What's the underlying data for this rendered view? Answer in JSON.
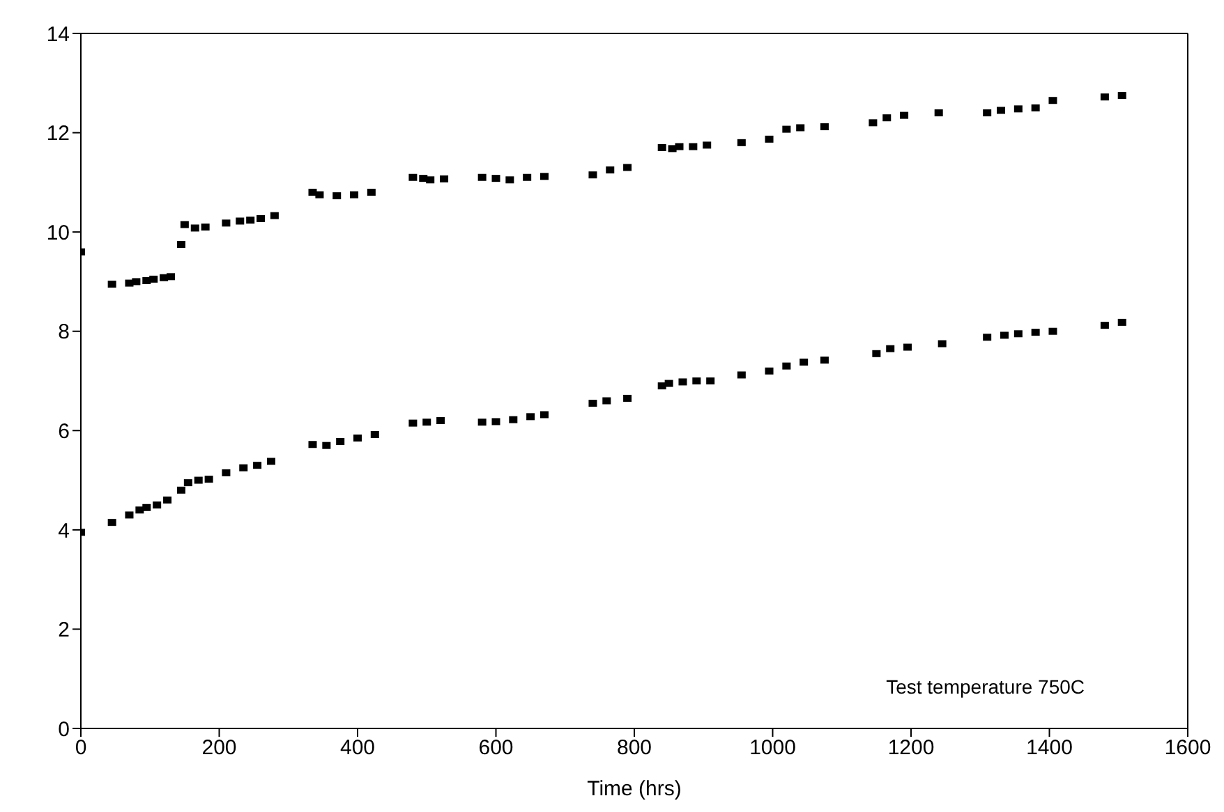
{
  "chart_data": {
    "type": "scatter",
    "xlabel": "Time (hrs)",
    "annotations": [
      "Test temperature 750C"
    ],
    "xlim": [
      0,
      1600
    ],
    "xticks": [
      0,
      200,
      400,
      600,
      800,
      1000,
      1200,
      1400,
      1600
    ],
    "ylim": [
      0,
      14
    ],
    "yticks": [
      0,
      2,
      4,
      6,
      8,
      10,
      12,
      14
    ],
    "marker": "square",
    "series": [
      {
        "color": "#000000",
        "x": [
          0,
          45,
          70,
          80,
          95,
          105,
          120,
          130,
          145,
          150,
          165,
          180,
          210,
          230,
          245,
          260,
          280,
          335,
          345,
          370,
          395,
          420,
          480,
          495,
          505,
          525,
          580,
          600,
          620,
          645,
          670,
          740,
          765,
          790,
          840,
          855,
          865,
          885,
          905,
          955,
          995,
          1020,
          1040,
          1075,
          1145,
          1165,
          1190,
          1240,
          1310,
          1330,
          1355,
          1380,
          1405,
          1480,
          1505
        ],
        "values": [
          9.6,
          8.95,
          8.97,
          9.0,
          9.02,
          9.05,
          9.08,
          9.1,
          9.75,
          10.15,
          10.08,
          10.1,
          10.18,
          10.22,
          10.24,
          10.27,
          10.33,
          10.8,
          10.75,
          10.73,
          10.75,
          10.8,
          11.1,
          11.08,
          11.05,
          11.07,
          11.1,
          11.08,
          11.05,
          11.1,
          11.12,
          11.15,
          11.25,
          11.3,
          11.7,
          11.68,
          11.72,
          11.72,
          11.75,
          11.8,
          11.87,
          12.07,
          12.1,
          12.12,
          12.2,
          12.3,
          12.35,
          12.4,
          12.4,
          12.45,
          12.48,
          12.5,
          12.65,
          12.72,
          12.75
        ]
      },
      {
        "color": "#000000",
        "x": [
          0,
          45,
          70,
          85,
          95,
          110,
          125,
          145,
          155,
          170,
          185,
          210,
          235,
          255,
          275,
          335,
          355,
          375,
          400,
          425,
          480,
          500,
          520,
          580,
          600,
          625,
          650,
          670,
          740,
          760,
          790,
          840,
          850,
          870,
          890,
          910,
          955,
          995,
          1020,
          1045,
          1075,
          1150,
          1170,
          1195,
          1245,
          1310,
          1335,
          1355,
          1380,
          1405,
          1480,
          1505
        ],
        "values": [
          3.95,
          4.15,
          4.3,
          4.4,
          4.45,
          4.5,
          4.6,
          4.8,
          4.95,
          5.0,
          5.02,
          5.15,
          5.25,
          5.3,
          5.38,
          5.72,
          5.7,
          5.78,
          5.85,
          5.92,
          6.15,
          6.17,
          6.2,
          6.17,
          6.18,
          6.22,
          6.28,
          6.32,
          6.55,
          6.6,
          6.65,
          6.9,
          6.95,
          6.98,
          7.0,
          7.0,
          7.12,
          7.2,
          7.3,
          7.38,
          7.42,
          7.55,
          7.65,
          7.68,
          7.75,
          7.88,
          7.92,
          7.95,
          7.98,
          8.0,
          8.12,
          8.18
        ]
      }
    ]
  }
}
